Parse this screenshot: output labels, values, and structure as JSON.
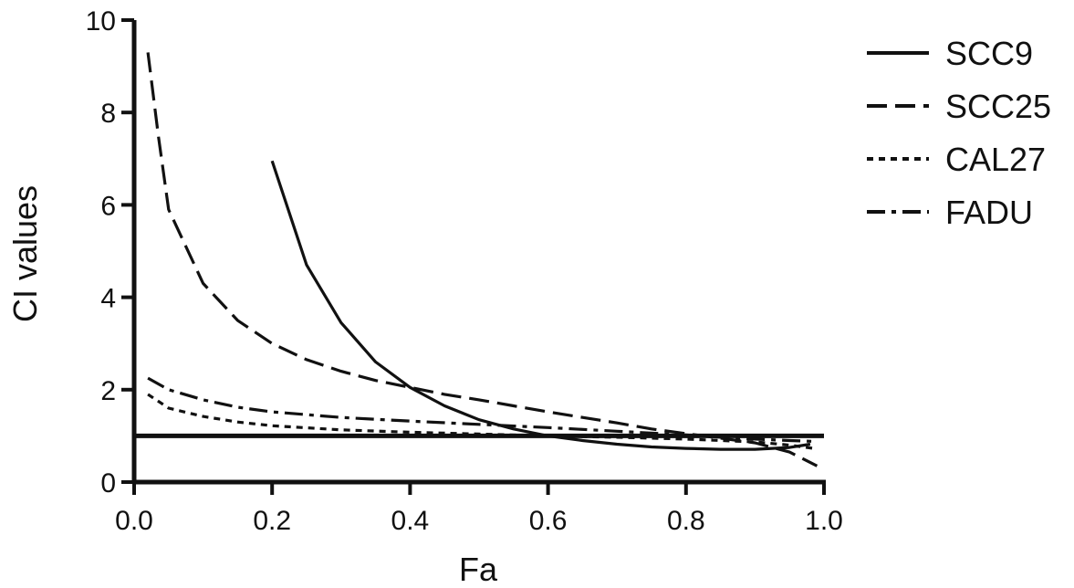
{
  "chart_data": {
    "type": "line",
    "xlabel": "Fa",
    "ylabel": "CI values",
    "xlim": [
      0,
      1
    ],
    "ylim": [
      0,
      10
    ],
    "x_ticks": [
      "0.0",
      "0.2",
      "0.4",
      "0.6",
      "0.8",
      "1.0"
    ],
    "y_ticks": [
      "0",
      "2",
      "4",
      "6",
      "8",
      "10"
    ],
    "reference_line": {
      "y": 1
    },
    "legend_position": "top-right",
    "series": [
      {
        "name": "SCC9",
        "style": "solid",
        "points": [
          [
            0.2,
            6.95
          ],
          [
            0.25,
            4.7
          ],
          [
            0.3,
            3.45
          ],
          [
            0.35,
            2.6
          ],
          [
            0.4,
            2.05
          ],
          [
            0.45,
            1.65
          ],
          [
            0.5,
            1.35
          ],
          [
            0.55,
            1.15
          ],
          [
            0.6,
            1.0
          ],
          [
            0.65,
            0.9
          ],
          [
            0.7,
            0.82
          ],
          [
            0.75,
            0.76
          ],
          [
            0.8,
            0.73
          ],
          [
            0.85,
            0.71
          ],
          [
            0.9,
            0.71
          ],
          [
            0.95,
            0.75
          ],
          [
            0.98,
            0.82
          ]
        ]
      },
      {
        "name": "SCC25",
        "style": "dashed",
        "points": [
          [
            0.02,
            9.3
          ],
          [
            0.035,
            7.5
          ],
          [
            0.05,
            5.9
          ],
          [
            0.1,
            4.3
          ],
          [
            0.15,
            3.5
          ],
          [
            0.2,
            3.0
          ],
          [
            0.25,
            2.65
          ],
          [
            0.3,
            2.4
          ],
          [
            0.35,
            2.2
          ],
          [
            0.4,
            2.05
          ],
          [
            0.45,
            1.9
          ],
          [
            0.5,
            1.78
          ],
          [
            0.55,
            1.65
          ],
          [
            0.6,
            1.52
          ],
          [
            0.65,
            1.4
          ],
          [
            0.7,
            1.28
          ],
          [
            0.75,
            1.15
          ],
          [
            0.8,
            1.05
          ],
          [
            0.85,
            0.95
          ],
          [
            0.9,
            0.85
          ],
          [
            0.95,
            0.65
          ],
          [
            0.99,
            0.35
          ]
        ]
      },
      {
        "name": "CAL27",
        "style": "dotted",
        "points": [
          [
            0.02,
            1.9
          ],
          [
            0.05,
            1.6
          ],
          [
            0.1,
            1.42
          ],
          [
            0.15,
            1.3
          ],
          [
            0.2,
            1.22
          ],
          [
            0.3,
            1.13
          ],
          [
            0.4,
            1.08
          ],
          [
            0.5,
            1.04
          ],
          [
            0.6,
            1.0
          ],
          [
            0.7,
            0.97
          ],
          [
            0.8,
            0.93
          ],
          [
            0.9,
            0.87
          ],
          [
            0.95,
            0.8
          ],
          [
            0.99,
            0.72
          ]
        ]
      },
      {
        "name": "FADU",
        "style": "dash-dot",
        "points": [
          [
            0.02,
            2.25
          ],
          [
            0.05,
            2.0
          ],
          [
            0.1,
            1.78
          ],
          [
            0.15,
            1.62
          ],
          [
            0.2,
            1.52
          ],
          [
            0.3,
            1.4
          ],
          [
            0.4,
            1.32
          ],
          [
            0.5,
            1.25
          ],
          [
            0.6,
            1.18
          ],
          [
            0.7,
            1.1
          ],
          [
            0.8,
            1.02
          ],
          [
            0.85,
            0.97
          ],
          [
            0.9,
            0.93
          ],
          [
            0.95,
            0.9
          ],
          [
            0.99,
            0.88
          ]
        ]
      }
    ]
  }
}
